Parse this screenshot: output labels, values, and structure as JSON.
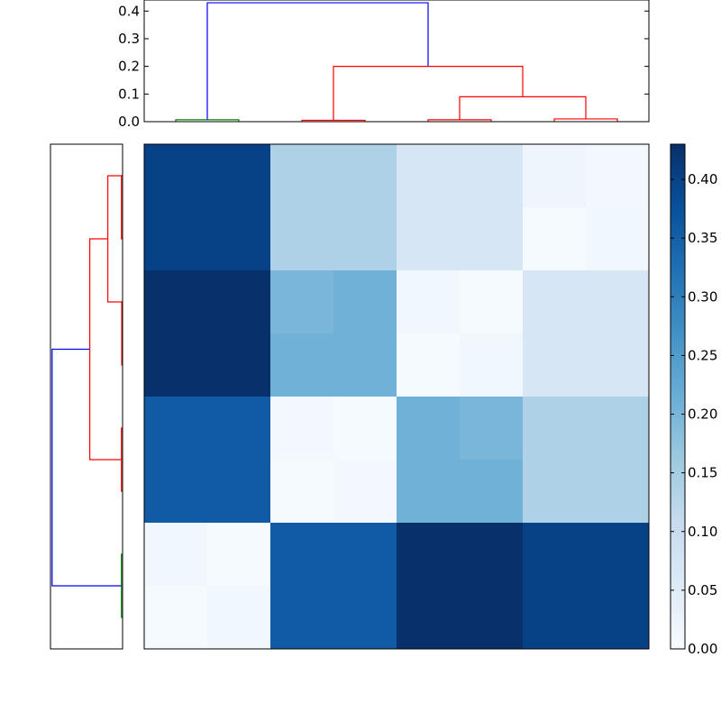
{
  "chart_data": {
    "type": "heatmap",
    "title": "",
    "colormap": "Blues",
    "color_range": [
      0.0,
      0.43
    ],
    "matrix": [
      [
        0.4,
        0.4,
        0.14,
        0.14,
        0.07,
        0.07,
        0.02,
        0.01
      ],
      [
        0.4,
        0.4,
        0.14,
        0.14,
        0.07,
        0.07,
        0.005,
        0.015
      ],
      [
        0.43,
        0.43,
        0.2,
        0.21,
        0.015,
        0.005,
        0.07,
        0.07
      ],
      [
        0.43,
        0.43,
        0.21,
        0.21,
        0.005,
        0.015,
        0.07,
        0.07
      ],
      [
        0.36,
        0.36,
        0.01,
        0.005,
        0.21,
        0.2,
        0.14,
        0.14
      ],
      [
        0.36,
        0.36,
        0.005,
        0.01,
        0.21,
        0.21,
        0.14,
        0.14
      ],
      [
        0.015,
        0.005,
        0.36,
        0.36,
        0.43,
        0.43,
        0.4,
        0.4
      ],
      [
        0.005,
        0.015,
        0.36,
        0.36,
        0.43,
        0.43,
        0.4,
        0.4
      ]
    ],
    "top_dendrogram": {
      "ylim": [
        0,
        0.44
      ],
      "yticks": [
        "0.0",
        "0.1",
        "0.2",
        "0.3",
        "0.4"
      ],
      "links": [
        {
          "x": [
            0.5,
            1.5
          ],
          "height": 0.007,
          "children_heights": [
            0,
            0
          ],
          "color": "#008000"
        },
        {
          "x": [
            2.5,
            3.5
          ],
          "height": 0.005,
          "children_heights": [
            0,
            0
          ],
          "color": "#ff0000"
        },
        {
          "x": [
            4.5,
            5.5
          ],
          "height": 0.007,
          "children_heights": [
            0,
            0
          ],
          "color": "#ff0000"
        },
        {
          "x": [
            6.5,
            7.5
          ],
          "height": 0.01,
          "children_heights": [
            0,
            0
          ],
          "color": "#ff0000"
        },
        {
          "x": [
            5.0,
            7.0
          ],
          "height": 0.09,
          "children_heights": [
            0.007,
            0.01
          ],
          "color": "#ff0000"
        },
        {
          "x": [
            3.0,
            6.0
          ],
          "height": 0.2,
          "children_heights": [
            0.005,
            0.09
          ],
          "color": "#ff0000"
        },
        {
          "x": [
            1.0,
            4.5
          ],
          "height": 0.43,
          "children_heights": [
            0.007,
            0.2
          ],
          "color": "#0000ff"
        }
      ]
    },
    "left_dendrogram": {
      "xlim": [
        0,
        0.44
      ],
      "links": [
        {
          "y": [
            0.5,
            1.5
          ],
          "height": 0.007,
          "children_heights": [
            0,
            0
          ],
          "color": "#ff0000"
        },
        {
          "y": [
            2.5,
            3.5
          ],
          "height": 0.005,
          "children_heights": [
            0,
            0
          ],
          "color": "#ff0000"
        },
        {
          "y": [
            0.5,
            2.5
          ],
          "height": 0.09,
          "children_heights": [
            0,
            0
          ],
          "color": "#ff0000"
        },
        {
          "y": [
            4.5,
            5.5
          ],
          "height": 0.007,
          "children_heights": [
            0,
            0
          ],
          "color": "#ff0000"
        },
        {
          "y": [
            1.5,
            5.0
          ],
          "height": 0.2,
          "children_heights": [
            0.09,
            0.007
          ],
          "color": "#ff0000"
        },
        {
          "y": [
            6.5,
            7.5
          ],
          "height": 0.007,
          "children_heights": [
            0,
            0
          ],
          "color": "#008000"
        },
        {
          "y": [
            3.25,
            7.0
          ],
          "height": 0.43,
          "children_heights": [
            0.2,
            0.007
          ],
          "color": "#0000ff"
        }
      ]
    },
    "colorbar": {
      "ticks": [
        0.0,
        0.05,
        0.1,
        0.15,
        0.2,
        0.25,
        0.3,
        0.35,
        0.4
      ],
      "tick_labels": [
        "0.00",
        "0.05",
        "0.10",
        "0.15",
        "0.20",
        "0.25",
        "0.30",
        "0.35",
        "0.40"
      ]
    }
  }
}
